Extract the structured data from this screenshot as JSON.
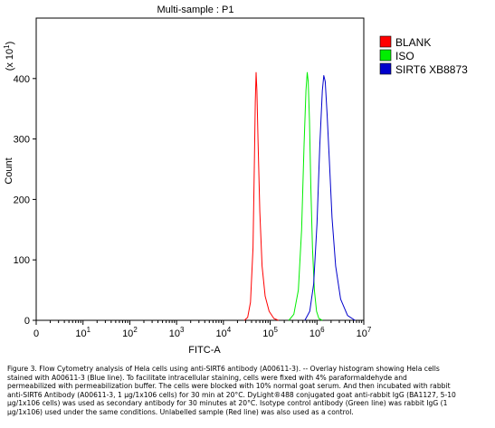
{
  "chart_data": {
    "type": "line",
    "title": "Multi-sample : P1",
    "xlabel": "FITC-A",
    "ylabel": "Count",
    "y_multiplier": "(x 10",
    "y_multiplier_exp": "1",
    "x_scale": "log",
    "xlim": [
      0,
      10000000
    ],
    "ylim": [
      0,
      500
    ],
    "x_ticks": [
      {
        "base": "0",
        "exp": ""
      },
      {
        "base": "10",
        "exp": "1"
      },
      {
        "base": "10",
        "exp": "2"
      },
      {
        "base": "10",
        "exp": "3"
      },
      {
        "base": "10",
        "exp": "4"
      },
      {
        "base": "10",
        "exp": "5"
      },
      {
        "base": "10",
        "exp": "6"
      },
      {
        "base": "10",
        "exp": "7"
      }
    ],
    "y_ticks": [
      "0",
      "100",
      "200",
      "300",
      "400"
    ],
    "legend_position": "top-right",
    "series": [
      {
        "name": "BLANK",
        "color": "#ff0000",
        "peak_x": 50000,
        "peak_y": 410,
        "x": [
          28000,
          33000,
          38000,
          43000,
          46000,
          48000,
          50000,
          52000,
          55000,
          60000,
          67000,
          78000,
          95000,
          120000,
          150000
        ],
        "y": [
          0,
          5,
          30,
          120,
          260,
          360,
          410,
          380,
          300,
          180,
          90,
          40,
          15,
          3,
          0
        ]
      },
      {
        "name": "ISO",
        "color": "#00ee00",
        "peak_x": 620000,
        "peak_y": 410,
        "x": [
          250000,
          320000,
          400000,
          470000,
          530000,
          580000,
          620000,
          650000,
          690000,
          740000,
          800000,
          880000,
          980000,
          1100000,
          1300000
        ],
        "y": [
          0,
          10,
          50,
          150,
          290,
          380,
          410,
          395,
          330,
          220,
          120,
          50,
          15,
          3,
          0
        ]
      },
      {
        "name": "SIRT6 XB8873",
        "color": "#0000cc",
        "peak_x": 1400000,
        "peak_y": 405,
        "x": [
          550000,
          700000,
          850000,
          1000000,
          1150000,
          1300000,
          1400000,
          1500000,
          1650000,
          1850000,
          2100000,
          2500000,
          3200000,
          4500000,
          6500000
        ],
        "y": [
          0,
          15,
          60,
          160,
          290,
          380,
          405,
          395,
          340,
          260,
          170,
          90,
          35,
          8,
          0
        ]
      }
    ]
  },
  "caption": [
    "Figure 3. Flow Cytometry analysis of Hela cells using anti-SIRT6 antibody (A00611-3).  -- Overlay histogram showing Hela cells",
    "stained with A00611-3 (Blue line). To facilitate intracellular staining, cells were fixed with 4% paraformaldehyde and",
    "permeabilized with permeabilization buffer. The cells were blocked with 10% normal goat serum. And then incubated with rabbit",
    "anti-SIRT6 Antibody (A00611-3, 1 μg/1x106 cells) for 30 min at 20°C. DyLight®488 conjugated goat anti-rabbit IgG (BA1127, 5-10",
    "μg/1x106 cells) was used as secondary antibody for 30 minutes at 20°C. Isotype control antibody (Green line) was rabbit IgG (1",
    "μg/1x106) used under the same conditions. Unlabelled sample (Red line) was also used as a control."
  ]
}
